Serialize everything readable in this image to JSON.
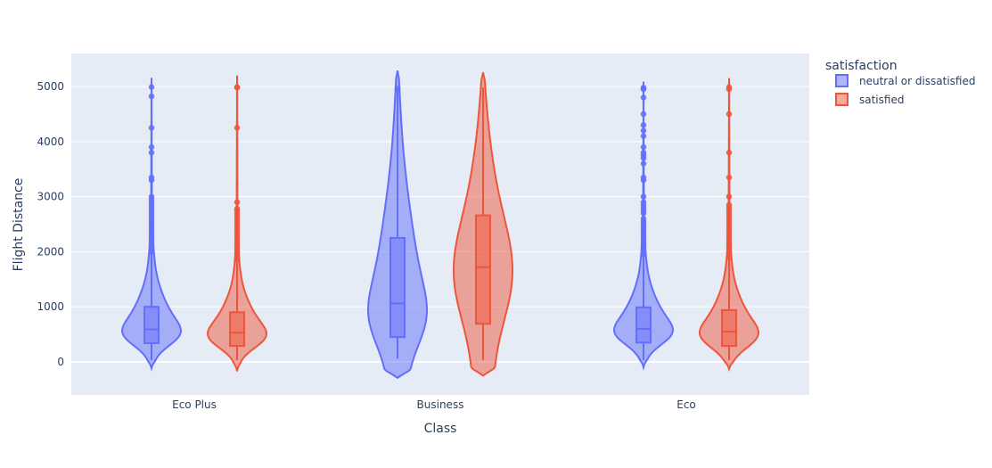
{
  "chart_data": {
    "type": "violin",
    "xlabel": "Class",
    "ylabel": "Flight Distance",
    "categories": [
      "Eco Plus",
      "Business",
      "Eco"
    ],
    "ylim": [
      -600,
      5600
    ],
    "yticks": [
      0,
      1000,
      2000,
      3000,
      4000,
      5000
    ],
    "ytick_labels": [
      "0",
      "1000",
      "2000",
      "3000",
      "4000",
      "5000"
    ],
    "grid": true,
    "legend": {
      "title": "satisfaction",
      "placement": "top-right",
      "entries": [
        "neutral or dissatisfied",
        "satisfied"
      ]
    },
    "colors": {
      "neutral or dissatisfied": "#636efa",
      "satisfied": "#ef553b",
      "plot_bg": "#e5ecf6",
      "grid": "#ffffff",
      "text": "#2a3f5f"
    },
    "series": [
      {
        "name": "neutral or dissatisfied",
        "stats": [
          {
            "category": "Eco Plus",
            "min": 31,
            "q1": 340,
            "median": 590,
            "q3": 1000,
            "whisker_high": 1990,
            "kde_min": -120,
            "kde_max": 5160,
            "outliers": [
              2000,
              2050,
              2100,
              2150,
              2200,
              2250,
              2300,
              2350,
              2400,
              2450,
              2500,
              2550,
              2600,
              2650,
              2700,
              2750,
              2800,
              2850,
              2900,
              2950,
              3000,
              3300,
              3350,
              3800,
              3900,
              4250,
              4820,
              4990
            ]
          },
          {
            "category": "Business",
            "min": 56,
            "q1": 450,
            "median": 1060,
            "q3": 2250,
            "whisker_high": 4950,
            "kde_min": -290,
            "kde_max": 5290,
            "outliers": [
              4960
            ]
          },
          {
            "category": "Eco",
            "min": 31,
            "q1": 350,
            "median": 600,
            "q3": 990,
            "whisker_high": 1940,
            "kde_min": -100,
            "kde_max": 5090,
            "outliers": [
              1950,
              2000,
              2050,
              2100,
              2150,
              2200,
              2250,
              2300,
              2350,
              2400,
              2450,
              2500,
              2550,
              2600,
              2700,
              2750,
              2800,
              2850,
              2900,
              3000,
              3300,
              3350,
              3600,
              3700,
              3750,
              3800,
              3900,
              4100,
              4200,
              4300,
              4500,
              4800,
              4950,
              4980
            ]
          }
        ]
      },
      {
        "name": "satisfied",
        "stats": [
          {
            "category": "Eco Plus",
            "min": 31,
            "q1": 290,
            "median": 530,
            "q3": 900,
            "whisker_high": 1800,
            "kde_min": -170,
            "kde_max": 5200,
            "outliers": [
              1850,
              1900,
              1950,
              2000,
              2050,
              2100,
              2150,
              2200,
              2250,
              2300,
              2350,
              2400,
              2450,
              2500,
              2550,
              2600,
              2650,
              2700,
              2750,
              2780,
              2900,
              4250,
              4980,
              4990
            ]
          },
          {
            "category": "Business",
            "min": 31,
            "q1": 690,
            "median": 1720,
            "q3": 2660,
            "whisker_high": 4980,
            "kde_min": -250,
            "kde_max": 5260,
            "outliers": []
          },
          {
            "category": "Eco",
            "min": 31,
            "q1": 290,
            "median": 550,
            "q3": 940,
            "whisker_high": 1880,
            "kde_min": -130,
            "kde_max": 5150,
            "outliers": [
              1900,
              1950,
              2000,
              2050,
              2100,
              2150,
              2200,
              2250,
              2300,
              2350,
              2400,
              2450,
              2500,
              2550,
              2600,
              2650,
              2700,
              2750,
              2800,
              2850,
              3000,
              3350,
              3800,
              4500,
              4950,
              4990
            ]
          }
        ]
      }
    ]
  }
}
